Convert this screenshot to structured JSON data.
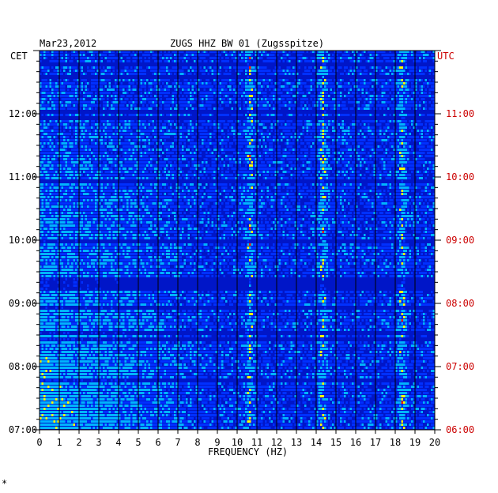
{
  "header": {
    "date": "Mar23,2012",
    "title": "ZUGS HHZ BW 01 (Zugsspitze)",
    "left_zone": "CET",
    "right_zone": "UTC",
    "footnote": "*"
  },
  "chart_data": {
    "type": "heatmap",
    "title": "ZUGS HHZ BW 01 (Zugsspitze)",
    "xlabel": "FREQUENCY (HZ)",
    "xlim": [
      0,
      20
    ],
    "x_ticks": [
      "0",
      "1",
      "2",
      "3",
      "4",
      "5",
      "6",
      "7",
      "8",
      "9",
      "10",
      "11",
      "12",
      "13",
      "14",
      "15",
      "16",
      "17",
      "18",
      "19",
      "20"
    ],
    "left_axis": {
      "label": "CET",
      "ticks": [
        "07:00",
        "08:00",
        "09:00",
        "10:00",
        "11:00",
        "12:00"
      ],
      "tick_values_hours": [
        7,
        8,
        9,
        10,
        11,
        12
      ],
      "range_hours": [
        7,
        13
      ]
    },
    "right_axis": {
      "label": "UTC",
      "ticks": [
        "06:00",
        "07:00",
        "08:00",
        "09:00",
        "10:00",
        "11:00"
      ],
      "tick_values_hours": [
        6,
        7,
        8,
        9,
        10,
        11
      ],
      "range_hours": [
        6,
        12
      ]
    },
    "colors": {
      "background": "#0016c8",
      "low": "#0030ff",
      "mid": "#00b4ff",
      "high": "#ffff00",
      "peak": "#ff2000",
      "grid": "#000000",
      "right_axis_text": "#cc0000"
    },
    "grid": true,
    "notable_bands_hz": [
      10.6,
      14.3,
      18.3
    ]
  }
}
